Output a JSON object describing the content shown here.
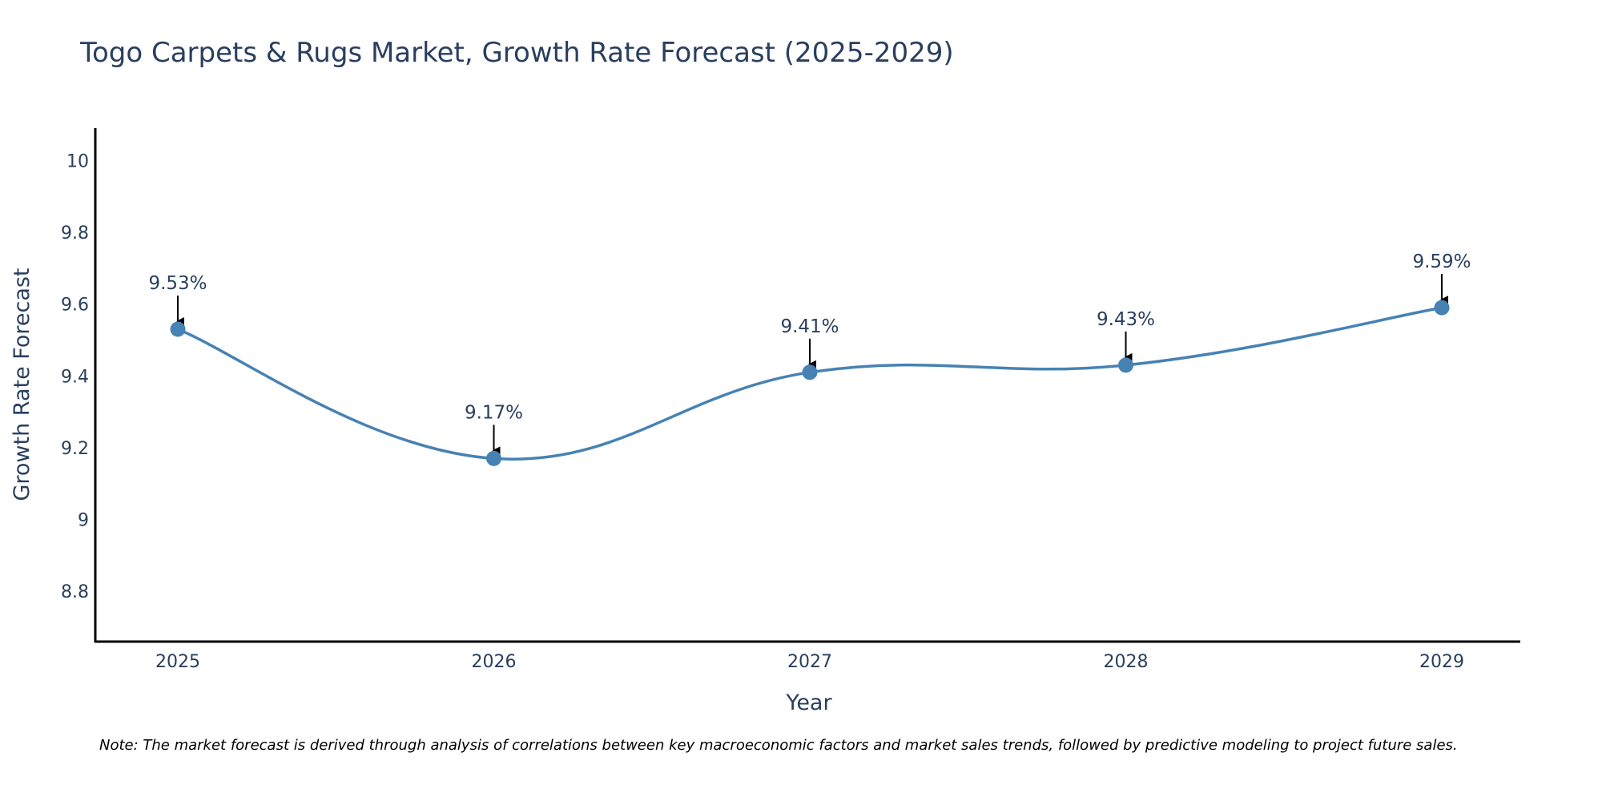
{
  "chart_data": {
    "type": "line",
    "title": "Togo Carpets & Rugs Market, Growth Rate Forecast (2025-2029)",
    "xlabel": "Year",
    "ylabel": "Growth Rate Forecast",
    "categories": [
      "2025",
      "2026",
      "2027",
      "2028",
      "2029"
    ],
    "values": [
      9.53,
      9.17,
      9.41,
      9.43,
      9.59
    ],
    "data_labels": [
      "9.53%",
      "9.17%",
      "9.41%",
      "9.43%",
      "9.59%"
    ],
    "ylim": [
      8.66,
      10.09
    ],
    "yticks": [
      8.8,
      9,
      9.2,
      9.4,
      9.6,
      9.8,
      10
    ],
    "ytick_labels": [
      "8.8",
      "9",
      "9.2",
      "9.4",
      "9.6",
      "9.8",
      "10"
    ],
    "line_shape": "spline",
    "grid": false,
    "colors": {
      "line": "#4682b4",
      "marker": "#4682b4",
      "arrow": "#000000",
      "axis": "#000000",
      "text": "#2a3f5f"
    }
  },
  "note": "Note: The market forecast is derived through analysis of correlations between key macroeconomic factors and market sales trends, followed by predictive modeling to project future sales."
}
